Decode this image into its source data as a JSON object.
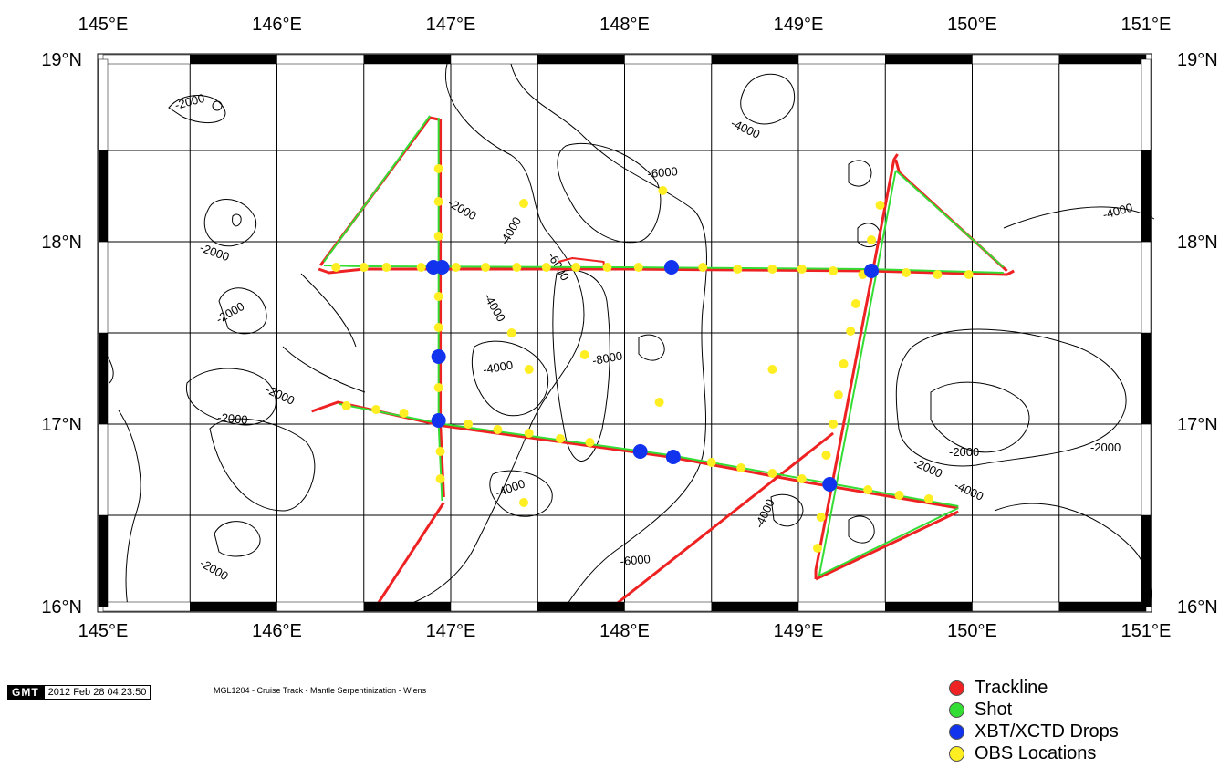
{
  "map": {
    "lon_ticks": [
      "145°E",
      "146°E",
      "147°E",
      "148°E",
      "149°E",
      "150°E",
      "151°E"
    ],
    "lat_ticks": [
      "19°N",
      "18°N",
      "17°N",
      "16°N"
    ],
    "lon_range": [
      145,
      151
    ],
    "lat_range": [
      16,
      19
    ],
    "contour_labels": [
      "-2000",
      "-2000",
      "-2000",
      "-2000",
      "-2000",
      "-2000",
      "-2000",
      "-2000",
      "-2000",
      "-2000",
      "-4000",
      "-4000",
      "-4000",
      "-4000",
      "-4000",
      "-4000",
      "-4000",
      "-4000",
      "-6000",
      "-6000",
      "-6000",
      "-8000"
    ],
    "colors": {
      "trackline": "#ee2222",
      "shot": "#33dd33",
      "xbt": "#1133ee",
      "obs": "#ffee22",
      "contour": "#000000"
    }
  },
  "footer": {
    "logo": "GMT",
    "timestamp": "2012 Feb 28 04:23:50",
    "caption": "MGL1204 - Cruise Track - Mantle Serpentinization - Wiens"
  },
  "legend": [
    {
      "label": "Trackline",
      "color": "#ee2222"
    },
    {
      "label": "Shot",
      "color": "#33dd33"
    },
    {
      "label": "XBT/XCTD Drops",
      "color": "#1133ee"
    },
    {
      "label": "OBS Locations",
      "color": "#ffee22"
    }
  ]
}
